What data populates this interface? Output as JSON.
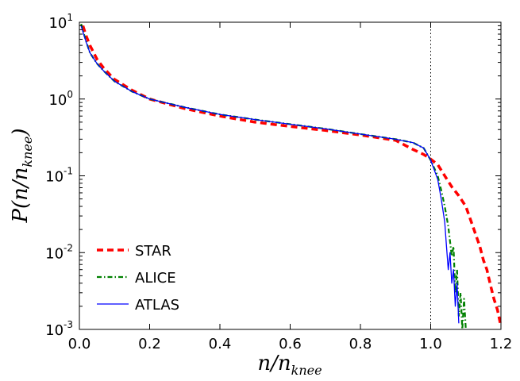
{
  "chart_data": {
    "type": "line",
    "xlabel": {
      "main": "n/n",
      "sub": "knee"
    },
    "ylabel": {
      "main": "P(n/n",
      "sub": "knee",
      "close": ")"
    },
    "xlim": [
      0.0,
      1.2
    ],
    "ylim": [
      0.001,
      10
    ],
    "yscale": "log",
    "x_ticks": [
      "0.0",
      "0.2",
      "0.4",
      "0.6",
      "0.8",
      "1.0",
      "1.2"
    ],
    "y_ticks": [
      {
        "base": "10",
        "exp": "1"
      },
      {
        "base": "10",
        "exp": "0"
      },
      {
        "base": "10",
        "exp": "-1"
      },
      {
        "base": "10",
        "exp": "-2"
      },
      {
        "base": "10",
        "exp": "-3"
      }
    ],
    "reference_line": {
      "x": 1.0,
      "style": "dotted"
    },
    "legend_position": "lower-left",
    "series": [
      {
        "name": "STAR",
        "color": "#ff0000",
        "style": "dashed",
        "x": [
          0.01,
          0.02,
          0.03,
          0.05,
          0.07,
          0.1,
          0.15,
          0.2,
          0.3,
          0.4,
          0.5,
          0.6,
          0.7,
          0.8,
          0.9,
          0.95,
          0.98,
          1.0,
          1.02,
          1.04,
          1.06,
          1.08,
          1.1,
          1.12,
          1.14,
          1.15,
          1.16,
          1.17,
          1.18,
          1.19,
          1.2
        ],
        "y": [
          9.0,
          6.5,
          5.0,
          3.3,
          2.5,
          1.8,
          1.3,
          1.0,
          0.75,
          0.6,
          0.5,
          0.44,
          0.39,
          0.34,
          0.29,
          0.22,
          0.19,
          0.165,
          0.14,
          0.1,
          0.072,
          0.055,
          0.04,
          0.022,
          0.012,
          0.008,
          0.006,
          0.0038,
          0.0025,
          0.0018,
          0.0011
        ]
      },
      {
        "name": "ALICE",
        "color": "#008000",
        "style": "dash-dot",
        "x": [
          0.005,
          0.01,
          0.02,
          0.03,
          0.05,
          0.07,
          0.1,
          0.15,
          0.2,
          0.3,
          0.4,
          0.5,
          0.6,
          0.7,
          0.8,
          0.9,
          0.95,
          0.98,
          1.0,
          1.02,
          1.03,
          1.04,
          1.05,
          1.06,
          1.065,
          1.07,
          1.075,
          1.08,
          1.085,
          1.09,
          1.095,
          1.1
        ],
        "y": [
          9.5,
          7.8,
          5.5,
          4.0,
          2.9,
          2.3,
          1.7,
          1.25,
          1.0,
          0.78,
          0.63,
          0.54,
          0.47,
          0.41,
          0.35,
          0.3,
          0.27,
          0.23,
          0.16,
          0.1,
          0.065,
          0.04,
          0.022,
          0.009,
          0.012,
          0.003,
          0.006,
          0.0015,
          0.003,
          0.0008,
          0.0025,
          0.001
        ]
      },
      {
        "name": "ATLAS",
        "color": "#0000ff",
        "style": "solid",
        "x": [
          0.005,
          0.01,
          0.02,
          0.03,
          0.05,
          0.07,
          0.1,
          0.15,
          0.2,
          0.3,
          0.4,
          0.5,
          0.6,
          0.7,
          0.8,
          0.9,
          0.95,
          0.98,
          1.0,
          1.02,
          1.03,
          1.04,
          1.045,
          1.05,
          1.055,
          1.06,
          1.065,
          1.07,
          1.075,
          1.08
        ],
        "y": [
          9.0,
          7.5,
          5.4,
          4.0,
          2.9,
          2.3,
          1.7,
          1.25,
          1.0,
          0.78,
          0.63,
          0.54,
          0.47,
          0.41,
          0.35,
          0.3,
          0.27,
          0.23,
          0.16,
          0.09,
          0.05,
          0.025,
          0.012,
          0.006,
          0.01,
          0.004,
          0.006,
          0.002,
          0.004,
          0.0012
        ]
      }
    ]
  }
}
